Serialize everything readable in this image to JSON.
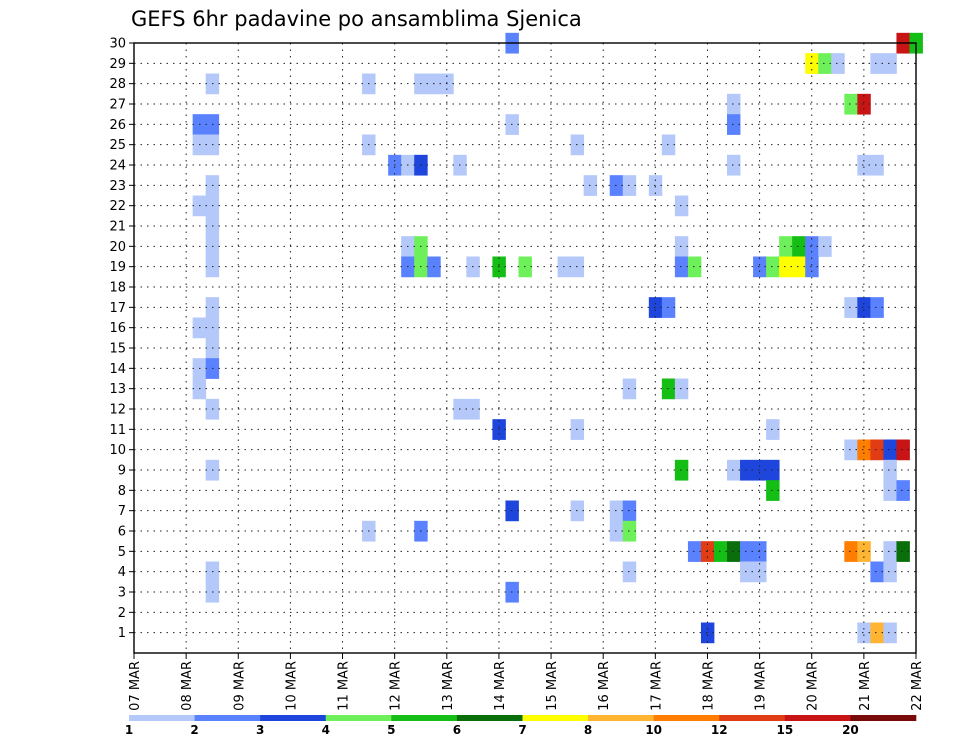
{
  "chart_data": {
    "type": "heatmap",
    "title": "GEFS 6hr padavine po ansamblima Sjenica",
    "xlabel": "",
    "ylabel": "",
    "x_ticks": [
      "07 MAR",
      "08 MAR",
      "09 MAR",
      "10 MAR",
      "11 MAR",
      "12 MAR",
      "13 MAR",
      "14 MAR",
      "15 MAR",
      "16 MAR",
      "17 MAR",
      "18 MAR",
      "19 MAR",
      "20 MAR",
      "21 MAR",
      "22 MAR"
    ],
    "x_range_days": [
      7,
      22
    ],
    "y_ticks": [
      "1",
      "2",
      "3",
      "4",
      "5",
      "6",
      "7",
      "8",
      "9",
      "10",
      "11",
      "12",
      "13",
      "14",
      "15",
      "16",
      "17",
      "18",
      "19",
      "20",
      "21",
      "22",
      "23",
      "24",
      "25",
      "26",
      "27",
      "28",
      "29",
      "30"
    ],
    "y_range": [
      0,
      30
    ],
    "grid": true,
    "legend_thresholds": [
      "1",
      "2",
      "3",
      "4",
      "5",
      "6",
      "7",
      "8",
      "10",
      "12",
      "15",
      "20"
    ],
    "legend_colors": [
      "#b4c8fa",
      "#5a82ff",
      "#1e46dc",
      "#6ef05a",
      "#14be14",
      "#0a6e0a",
      "#ffff00",
      "#ffb432",
      "#ff7d00",
      "#e13c14",
      "#c81414",
      "#780a0a"
    ],
    "cells": [
      {
        "t": 14.25,
        "m": 30,
        "c": 1
      },
      {
        "t": 21.75,
        "m": 30,
        "c": 10
      },
      {
        "t": 22.0,
        "m": 30,
        "c": 4
      },
      {
        "t": 20.0,
        "m": 29,
        "c": 6
      },
      {
        "t": 20.25,
        "m": 29,
        "c": 3
      },
      {
        "t": 20.5,
        "m": 29,
        "c": 0
      },
      {
        "t": 21.25,
        "m": 29,
        "c": 0
      },
      {
        "t": 21.5,
        "m": 29,
        "c": 0
      },
      {
        "t": 8.5,
        "m": 28,
        "c": 0
      },
      {
        "t": 11.5,
        "m": 28,
        "c": 0
      },
      {
        "t": 12.5,
        "m": 28,
        "c": 0
      },
      {
        "t": 12.75,
        "m": 28,
        "c": 0
      },
      {
        "t": 13.0,
        "m": 28,
        "c": 0
      },
      {
        "t": 18.5,
        "m": 27,
        "c": 0
      },
      {
        "t": 20.75,
        "m": 27,
        "c": 3
      },
      {
        "t": 21.0,
        "m": 27,
        "c": 10
      },
      {
        "t": 8.25,
        "m": 26,
        "c": 1
      },
      {
        "t": 8.5,
        "m": 26,
        "c": 1
      },
      {
        "t": 14.25,
        "m": 26,
        "c": 0
      },
      {
        "t": 18.5,
        "m": 26,
        "c": 1
      },
      {
        "t": 8.25,
        "m": 25,
        "c": 0
      },
      {
        "t": 8.5,
        "m": 25,
        "c": 0
      },
      {
        "t": 11.5,
        "m": 25,
        "c": 0
      },
      {
        "t": 15.5,
        "m": 25,
        "c": 0
      },
      {
        "t": 17.25,
        "m": 25,
        "c": 0
      },
      {
        "t": 12.0,
        "m": 24,
        "c": 1
      },
      {
        "t": 12.25,
        "m": 24,
        "c": 0
      },
      {
        "t": 12.5,
        "m": 24,
        "c": 2
      },
      {
        "t": 13.25,
        "m": 24,
        "c": 0
      },
      {
        "t": 18.5,
        "m": 24,
        "c": 0
      },
      {
        "t": 21.0,
        "m": 24,
        "c": 0
      },
      {
        "t": 21.25,
        "m": 24,
        "c": 0
      },
      {
        "t": 8.5,
        "m": 23,
        "c": 0
      },
      {
        "t": 15.75,
        "m": 23,
        "c": 0
      },
      {
        "t": 16.25,
        "m": 23,
        "c": 1
      },
      {
        "t": 16.5,
        "m": 23,
        "c": 0
      },
      {
        "t": 17.0,
        "m": 23,
        "c": 0
      },
      {
        "t": 8.25,
        "m": 22,
        "c": 0
      },
      {
        "t": 8.5,
        "m": 22,
        "c": 0
      },
      {
        "t": 17.5,
        "m": 22,
        "c": 0
      },
      {
        "t": 8.5,
        "m": 21,
        "c": 0
      },
      {
        "t": 8.5,
        "m": 20,
        "c": 0
      },
      {
        "t": 12.25,
        "m": 20,
        "c": 0
      },
      {
        "t": 12.5,
        "m": 20,
        "c": 3
      },
      {
        "t": 17.5,
        "m": 20,
        "c": 0
      },
      {
        "t": 19.5,
        "m": 20,
        "c": 3
      },
      {
        "t": 19.75,
        "m": 20,
        "c": 4
      },
      {
        "t": 20.0,
        "m": 20,
        "c": 1
      },
      {
        "t": 20.25,
        "m": 20,
        "c": 0
      },
      {
        "t": 8.5,
        "m": 19,
        "c": 0
      },
      {
        "t": 12.25,
        "m": 19,
        "c": 1
      },
      {
        "t": 12.5,
        "m": 19,
        "c": 3
      },
      {
        "t": 12.75,
        "m": 19,
        "c": 1
      },
      {
        "t": 13.5,
        "m": 19,
        "c": 0
      },
      {
        "t": 14.0,
        "m": 19,
        "c": 4
      },
      {
        "t": 14.5,
        "m": 19,
        "c": 3
      },
      {
        "t": 15.25,
        "m": 19,
        "c": 0
      },
      {
        "t": 15.5,
        "m": 19,
        "c": 0
      },
      {
        "t": 17.5,
        "m": 19,
        "c": 1
      },
      {
        "t": 17.75,
        "m": 19,
        "c": 3
      },
      {
        "t": 19.0,
        "m": 19,
        "c": 1
      },
      {
        "t": 19.25,
        "m": 19,
        "c": 3
      },
      {
        "t": 19.5,
        "m": 19,
        "c": 6
      },
      {
        "t": 19.75,
        "m": 19,
        "c": 6
      },
      {
        "t": 20.0,
        "m": 19,
        "c": 1
      },
      {
        "t": 8.5,
        "m": 17,
        "c": 0
      },
      {
        "t": 17.0,
        "m": 17,
        "c": 2
      },
      {
        "t": 17.25,
        "m": 17,
        "c": 1
      },
      {
        "t": 20.75,
        "m": 17,
        "c": 0
      },
      {
        "t": 21.0,
        "m": 17,
        "c": 2
      },
      {
        "t": 21.25,
        "m": 17,
        "c": 1
      },
      {
        "t": 8.25,
        "m": 16,
        "c": 0
      },
      {
        "t": 8.5,
        "m": 16,
        "c": 0
      },
      {
        "t": 8.5,
        "m": 15,
        "c": 0
      },
      {
        "t": 8.25,
        "m": 14,
        "c": 0
      },
      {
        "t": 8.5,
        "m": 14,
        "c": 1
      },
      {
        "t": 8.25,
        "m": 13,
        "c": 0
      },
      {
        "t": 17.25,
        "m": 13,
        "c": 4
      },
      {
        "t": 16.5,
        "m": 13,
        "c": 0
      },
      {
        "t": 17.5,
        "m": 13,
        "c": 0
      },
      {
        "t": 8.5,
        "m": 12,
        "c": 0
      },
      {
        "t": 13.25,
        "m": 12,
        "c": 0
      },
      {
        "t": 13.5,
        "m": 12,
        "c": 0
      },
      {
        "t": 14.0,
        "m": 11,
        "c": 2
      },
      {
        "t": 15.5,
        "m": 11,
        "c": 0
      },
      {
        "t": 19.25,
        "m": 11,
        "c": 0
      },
      {
        "t": 20.75,
        "m": 10,
        "c": 0
      },
      {
        "t": 21.0,
        "m": 10,
        "c": 8
      },
      {
        "t": 21.25,
        "m": 10,
        "c": 9
      },
      {
        "t": 21.5,
        "m": 10,
        "c": 2
      },
      {
        "t": 21.75,
        "m": 10,
        "c": 10
      },
      {
        "t": 8.5,
        "m": 9,
        "c": 0
      },
      {
        "t": 17.5,
        "m": 9,
        "c": 4
      },
      {
        "t": 18.5,
        "m": 9,
        "c": 0
      },
      {
        "t": 18.75,
        "m": 9,
        "c": 2
      },
      {
        "t": 19.0,
        "m": 9,
        "c": 2
      },
      {
        "t": 19.25,
        "m": 9,
        "c": 2
      },
      {
        "t": 21.5,
        "m": 9,
        "c": 0
      },
      {
        "t": 19.25,
        "m": 8,
        "c": 4
      },
      {
        "t": 21.5,
        "m": 8,
        "c": 0
      },
      {
        "t": 21.75,
        "m": 8,
        "c": 1
      },
      {
        "t": 14.25,
        "m": 7,
        "c": 2
      },
      {
        "t": 15.5,
        "m": 7,
        "c": 0
      },
      {
        "t": 16.25,
        "m": 7,
        "c": 0
      },
      {
        "t": 16.5,
        "m": 7,
        "c": 1
      },
      {
        "t": 11.5,
        "m": 6,
        "c": 0
      },
      {
        "t": 12.5,
        "m": 6,
        "c": 1
      },
      {
        "t": 16.25,
        "m": 6,
        "c": 0
      },
      {
        "t": 16.5,
        "m": 6,
        "c": 3
      },
      {
        "t": 17.75,
        "m": 5,
        "c": 1
      },
      {
        "t": 18.0,
        "m": 5,
        "c": 9
      },
      {
        "t": 18.25,
        "m": 5,
        "c": 4
      },
      {
        "t": 18.5,
        "m": 5,
        "c": 5
      },
      {
        "t": 18.75,
        "m": 5,
        "c": 1
      },
      {
        "t": 19.0,
        "m": 5,
        "c": 1
      },
      {
        "t": 20.75,
        "m": 5,
        "c": 8
      },
      {
        "t": 21.0,
        "m": 5,
        "c": 7
      },
      {
        "t": 21.5,
        "m": 5,
        "c": 0
      },
      {
        "t": 21.75,
        "m": 5,
        "c": 5
      },
      {
        "t": 8.5,
        "m": 4,
        "c": 0
      },
      {
        "t": 16.5,
        "m": 4,
        "c": 0
      },
      {
        "t": 18.75,
        "m": 4,
        "c": 0
      },
      {
        "t": 19.0,
        "m": 4,
        "c": 0
      },
      {
        "t": 21.25,
        "m": 4,
        "c": 1
      },
      {
        "t": 21.5,
        "m": 4,
        "c": 0
      },
      {
        "t": 8.5,
        "m": 3,
        "c": 0
      },
      {
        "t": 14.25,
        "m": 3,
        "c": 1
      },
      {
        "t": 18.0,
        "m": 1,
        "c": 2
      },
      {
        "t": 21.0,
        "m": 1,
        "c": 0
      },
      {
        "t": 21.25,
        "m": 1,
        "c": 7
      },
      {
        "t": 21.5,
        "m": 1,
        "c": 0
      }
    ]
  }
}
